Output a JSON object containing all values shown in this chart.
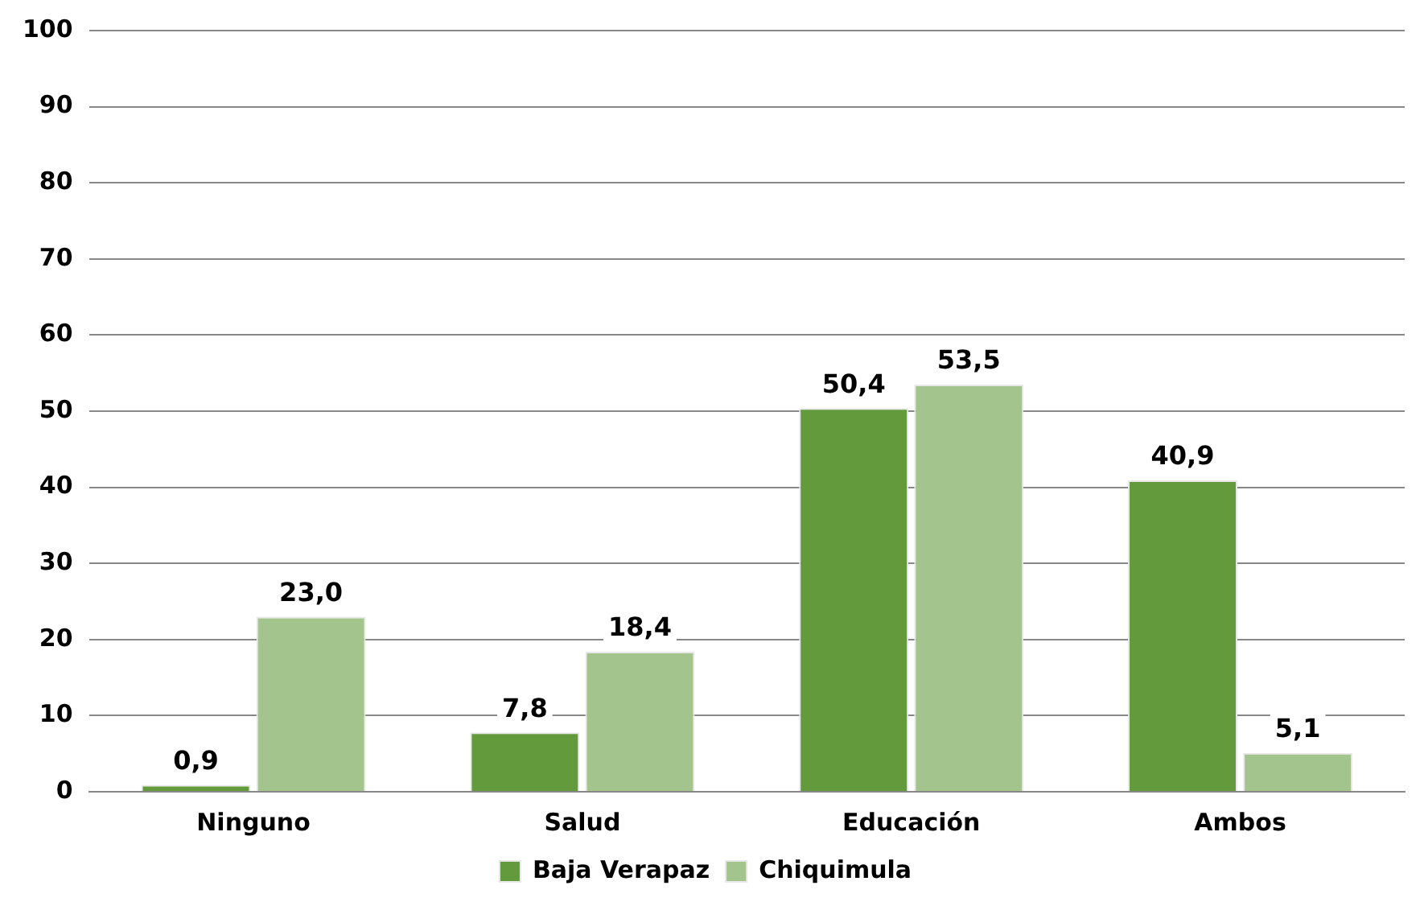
{
  "chart_data": {
    "type": "bar",
    "categories": [
      "Ninguno",
      "Salud",
      "Educación",
      "Ambos"
    ],
    "series": [
      {
        "name": "Baja Verapaz",
        "color": "#629a3c",
        "values": [
          0.9,
          7.8,
          50.4,
          40.9
        ],
        "value_labels": [
          "0,9",
          "7,8",
          "50,4",
          "40,9"
        ]
      },
      {
        "name": "Chiquimula",
        "color": "#a3c58d",
        "values": [
          23.0,
          18.4,
          53.5,
          5.1
        ],
        "value_labels": [
          "23,0",
          "18,4",
          "53,5",
          "5,1"
        ]
      }
    ],
    "ylim": [
      0,
      100
    ],
    "yticks": [
      0,
      10,
      20,
      30,
      40,
      50,
      60,
      70,
      80,
      90,
      100
    ],
    "grid": "y",
    "legend": "bottom"
  }
}
